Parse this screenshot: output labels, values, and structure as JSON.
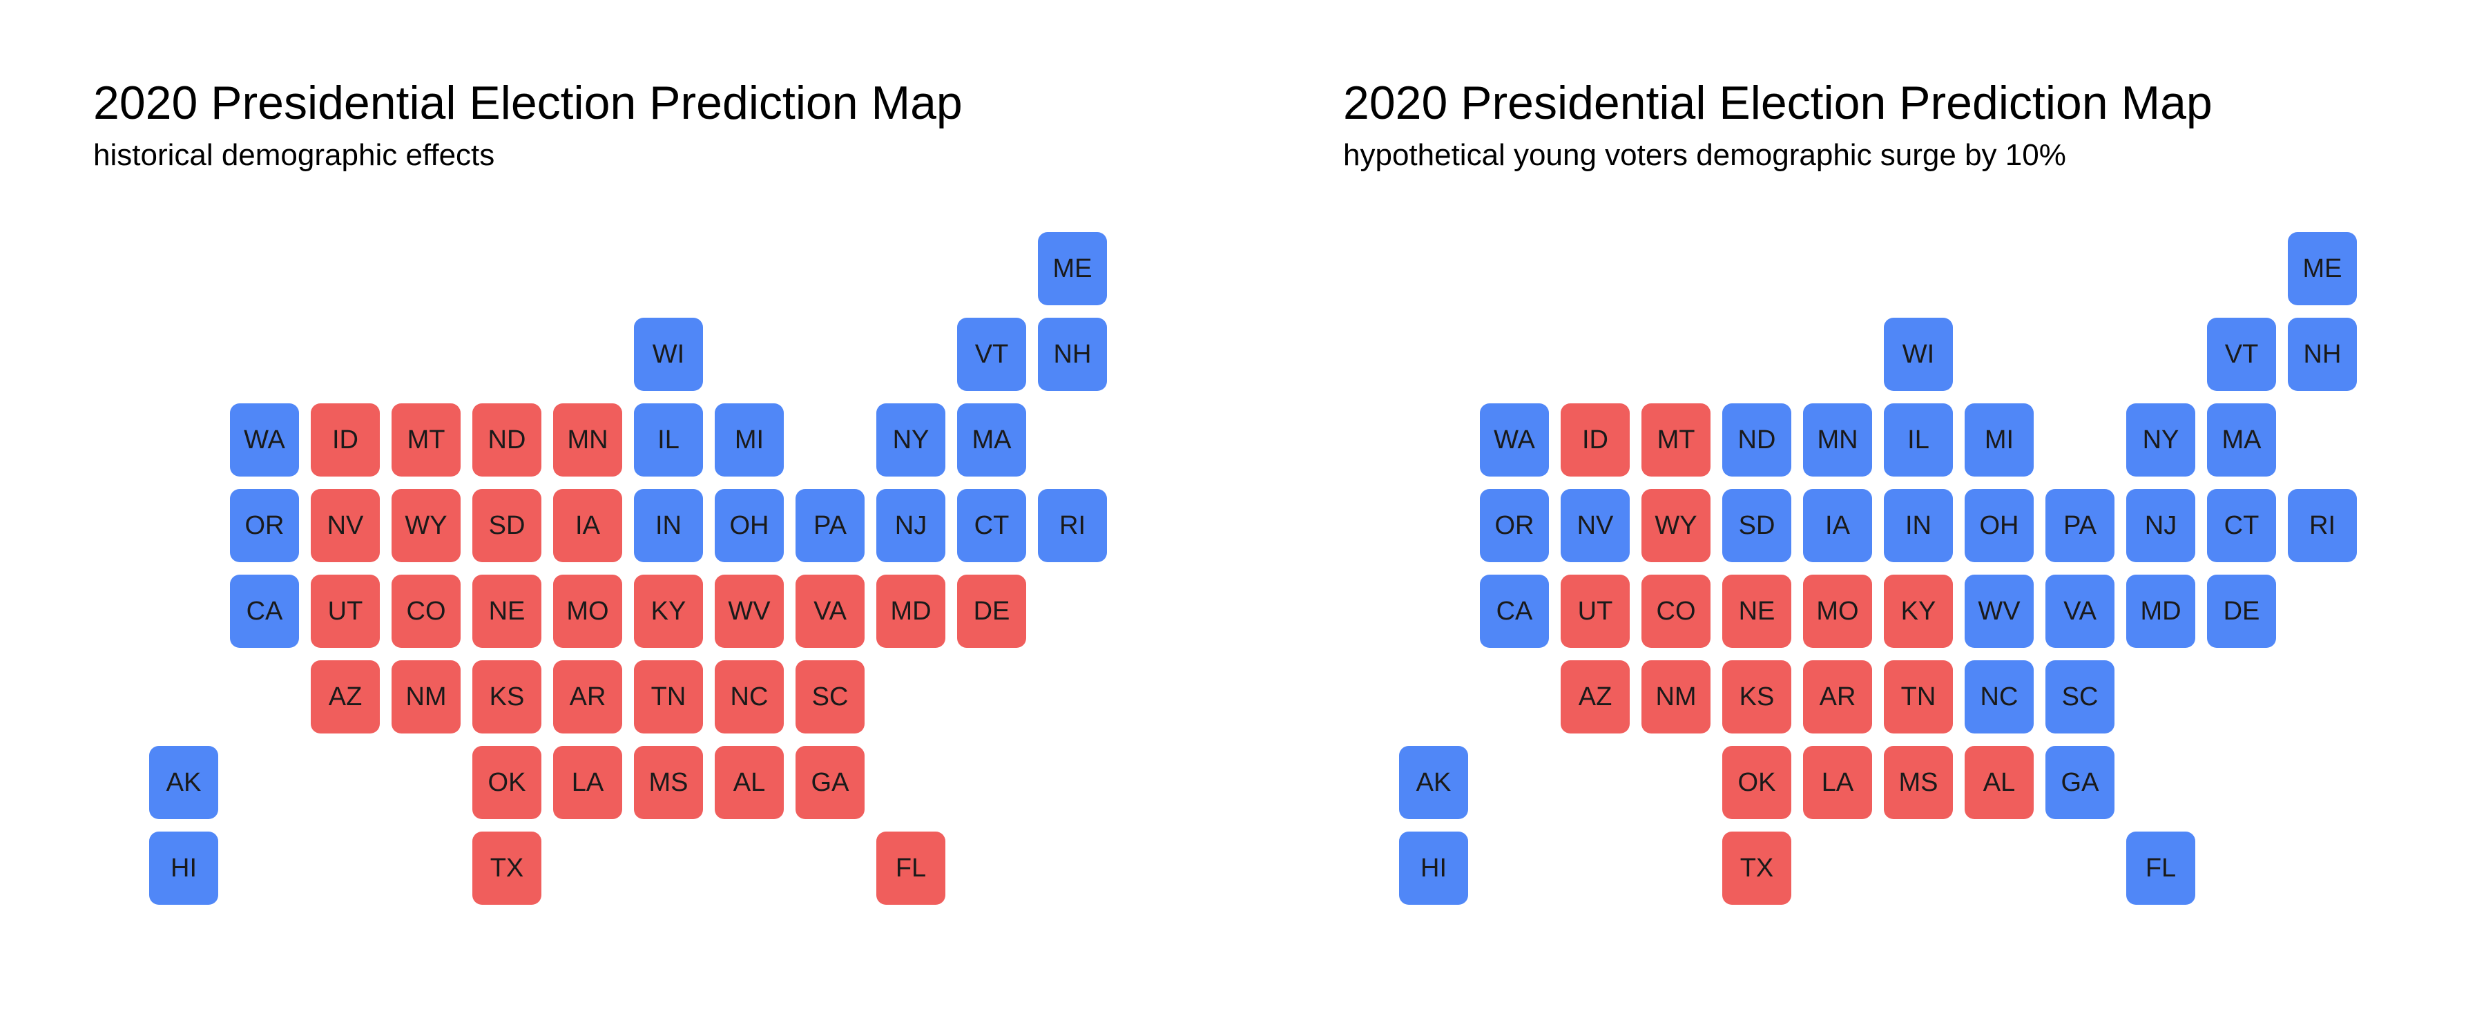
{
  "colors": {
    "D": "#5087f7",
    "R": "#f05e5c"
  },
  "maps": [
    {
      "title": "2020 Presidential Election Prediction Map",
      "subtitle": "historical demographic effects",
      "states": {
        "ME": "D",
        "WI": "D",
        "VT": "D",
        "NH": "D",
        "WA": "D",
        "ID": "R",
        "MT": "R",
        "ND": "R",
        "MN": "R",
        "IL": "D",
        "MI": "D",
        "NY": "D",
        "MA": "D",
        "OR": "D",
        "NV": "R",
        "WY": "R",
        "SD": "R",
        "IA": "R",
        "IN": "D",
        "OH": "D",
        "PA": "D",
        "NJ": "D",
        "CT": "D",
        "RI": "D",
        "CA": "D",
        "UT": "R",
        "CO": "R",
        "NE": "R",
        "MO": "R",
        "KY": "R",
        "WV": "R",
        "VA": "R",
        "MD": "R",
        "DE": "R",
        "AZ": "R",
        "NM": "R",
        "KS": "R",
        "AR": "R",
        "TN": "R",
        "NC": "R",
        "SC": "R",
        "AK": "D",
        "OK": "R",
        "LA": "R",
        "MS": "R",
        "AL": "R",
        "GA": "R",
        "HI": "D",
        "TX": "R",
        "FL": "R"
      }
    },
    {
      "title": "2020 Presidential Election Prediction Map",
      "subtitle": "hypothetical young voters demographic surge by 10%",
      "states": {
        "ME": "D",
        "WI": "D",
        "VT": "D",
        "NH": "D",
        "WA": "D",
        "ID": "R",
        "MT": "R",
        "ND": "D",
        "MN": "D",
        "IL": "D",
        "MI": "D",
        "NY": "D",
        "MA": "D",
        "OR": "D",
        "NV": "D",
        "WY": "R",
        "SD": "D",
        "IA": "D",
        "IN": "D",
        "OH": "D",
        "PA": "D",
        "NJ": "D",
        "CT": "D",
        "RI": "D",
        "CA": "D",
        "UT": "R",
        "CO": "R",
        "NE": "R",
        "MO": "R",
        "KY": "R",
        "WV": "D",
        "VA": "D",
        "MD": "D",
        "DE": "D",
        "AZ": "R",
        "NM": "R",
        "KS": "R",
        "AR": "R",
        "TN": "R",
        "NC": "D",
        "SC": "D",
        "AK": "D",
        "OK": "R",
        "LA": "R",
        "MS": "R",
        "AL": "R",
        "GA": "D",
        "HI": "D",
        "TX": "R",
        "FL": "D"
      }
    }
  ]
}
